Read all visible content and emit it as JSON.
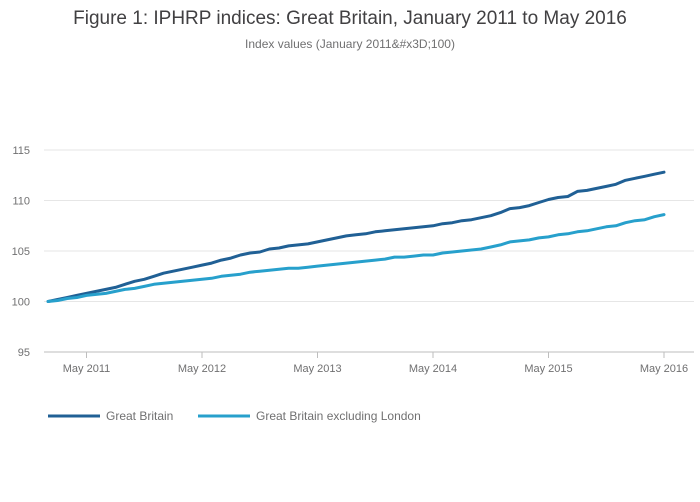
{
  "chart_data": {
    "type": "line",
    "title": "Figure 1: IPHRP indices: Great Britain, January 2011 to May 2016",
    "subtitle": "Index values (January 2011&#x3D;100)",
    "xlabel": "",
    "ylabel": "",
    "ylim": [
      95,
      117
    ],
    "yticks": [
      95,
      100,
      105,
      110,
      115
    ],
    "xticks": [
      "May 2011",
      "May 2012",
      "May 2013",
      "May 2014",
      "May 2015",
      "May 2016"
    ],
    "x": [
      "Jan 2011",
      "Feb 2011",
      "Mar 2011",
      "Apr 2011",
      "May 2011",
      "Jun 2011",
      "Jul 2011",
      "Aug 2011",
      "Sep 2011",
      "Oct 2011",
      "Nov 2011",
      "Dec 2011",
      "Jan 2012",
      "Feb 2012",
      "Mar 2012",
      "Apr 2012",
      "May 2012",
      "Jun 2012",
      "Jul 2012",
      "Aug 2012",
      "Sep 2012",
      "Oct 2012",
      "Nov 2012",
      "Dec 2012",
      "Jan 2013",
      "Feb 2013",
      "Mar 2013",
      "Apr 2013",
      "May 2013",
      "Jun 2013",
      "Jul 2013",
      "Aug 2013",
      "Sep 2013",
      "Oct 2013",
      "Nov 2013",
      "Dec 2013",
      "Jan 2014",
      "Feb 2014",
      "Mar 2014",
      "Apr 2014",
      "May 2014",
      "Jun 2014",
      "Jul 2014",
      "Aug 2014",
      "Sep 2014",
      "Oct 2014",
      "Nov 2014",
      "Dec 2014",
      "Jan 2015",
      "Feb 2015",
      "Mar 2015",
      "Apr 2015",
      "May 2015",
      "Jun 2015",
      "Jul 2015",
      "Aug 2015",
      "Sep 2015",
      "Oct 2015",
      "Nov 2015",
      "Dec 2015",
      "Jan 2016",
      "Feb 2016",
      "Mar 2016",
      "Apr 2016",
      "May 2016"
    ],
    "series": [
      {
        "name": "Great Britain",
        "color": "#206095",
        "values": [
          100.0,
          100.2,
          100.4,
          100.6,
          100.8,
          101.0,
          101.2,
          101.4,
          101.7,
          102.0,
          102.2,
          102.5,
          102.8,
          103.0,
          103.2,
          103.4,
          103.6,
          103.8,
          104.1,
          104.3,
          104.6,
          104.8,
          104.9,
          105.2,
          105.3,
          105.5,
          105.6,
          105.7,
          105.9,
          106.1,
          106.3,
          106.5,
          106.6,
          106.7,
          106.9,
          107.0,
          107.1,
          107.2,
          107.3,
          107.4,
          107.5,
          107.7,
          107.8,
          108.0,
          108.1,
          108.3,
          108.5,
          108.8,
          109.2,
          109.3,
          109.5,
          109.8,
          110.1,
          110.3,
          110.4,
          110.9,
          111.0,
          111.2,
          111.4,
          111.6,
          112.0,
          112.2,
          112.4,
          112.6,
          112.8
        ]
      },
      {
        "name": "Great Britain excluding London",
        "color": "#27a0cc",
        "values": [
          100.0,
          100.1,
          100.3,
          100.4,
          100.6,
          100.7,
          100.8,
          101.0,
          101.2,
          101.3,
          101.5,
          101.7,
          101.8,
          101.9,
          102.0,
          102.1,
          102.2,
          102.3,
          102.5,
          102.6,
          102.7,
          102.9,
          103.0,
          103.1,
          103.2,
          103.3,
          103.3,
          103.4,
          103.5,
          103.6,
          103.7,
          103.8,
          103.9,
          104.0,
          104.1,
          104.2,
          104.4,
          104.4,
          104.5,
          104.6,
          104.6,
          104.8,
          104.9,
          105.0,
          105.1,
          105.2,
          105.4,
          105.6,
          105.9,
          106.0,
          106.1,
          106.3,
          106.4,
          106.6,
          106.7,
          106.9,
          107.0,
          107.2,
          107.4,
          107.5,
          107.8,
          108.0,
          108.1,
          108.4,
          108.6
        ]
      }
    ],
    "grid": true,
    "legend_position": "bottom-left"
  }
}
